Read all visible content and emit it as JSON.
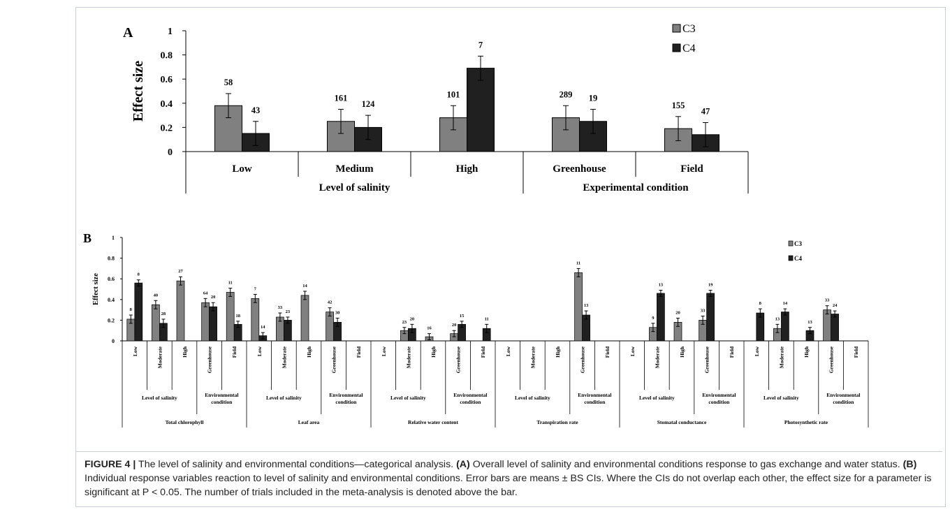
{
  "chart_data": [
    {
      "panel": "A",
      "type": "bar",
      "ylabel": "Effect size",
      "ylim": [
        0,
        1
      ],
      "yticks": [
        "0",
        "0.2",
        "0.4",
        "0.6",
        "0.8",
        "1"
      ],
      "categories": [
        "Low",
        "Medium",
        "High",
        "Greenhouse",
        "Field"
      ],
      "groups": [
        {
          "label": "Level of salinity",
          "span": [
            0,
            2
          ]
        },
        {
          "label": "Experimental condition",
          "span": [
            3,
            4
          ]
        }
      ],
      "series": [
        {
          "name": "C3",
          "color": "#808080",
          "values": [
            0.38,
            0.25,
            0.28,
            0.28,
            0.19
          ],
          "errors": [
            0.1,
            0.1,
            0.1,
            0.1,
            0.1
          ],
          "counts": [
            "58",
            "161",
            "101",
            "289",
            "155"
          ]
        },
        {
          "name": "C4",
          "color": "#202020",
          "values": [
            0.15,
            0.2,
            0.69,
            0.25,
            0.14
          ],
          "errors": [
            0.1,
            0.1,
            0.1,
            0.1,
            0.1
          ],
          "counts": [
            "43",
            "124",
            "7",
            "19",
            "47"
          ]
        }
      ],
      "legend_position": "top-right"
    },
    {
      "panel": "B",
      "type": "bar",
      "ylabel": "Effect size",
      "ylim": [
        0,
        1
      ],
      "yticks": [
        "0",
        "0.2",
        "0.4",
        "0.6",
        "0.8",
        "1"
      ],
      "category_labels": [
        "Low",
        "Moderate",
        "High",
        "Greenhouse",
        "Field"
      ],
      "subgroups": [
        {
          "label": "Level of salinity",
          "span": [
            0,
            2
          ]
        },
        {
          "label": [
            "Environmental",
            "condition"
          ],
          "span": [
            3,
            4
          ]
        }
      ],
      "variables": [
        {
          "name": "Total chlorophyll",
          "c3": [
            0.21,
            0.35,
            0.58,
            0.37,
            0.47
          ],
          "c3_err": [
            0.04,
            0.04,
            0.04,
            0.04,
            0.04
          ],
          "c3_n": [
            "8",
            "40",
            "27",
            "64",
            "11"
          ],
          "c4": [
            0.56,
            0.17,
            null,
            0.33,
            0.16
          ],
          "c4_err": [
            0.03,
            0.04,
            null,
            0.04,
            0.03
          ],
          "c4_n": [
            "8",
            "28",
            "",
            "20",
            "18"
          ]
        },
        {
          "name": "Leaf area",
          "c3": [
            0.41,
            0.23,
            0.44,
            0.28,
            null
          ],
          "c3_err": [
            0.04,
            0.04,
            0.04,
            0.04,
            null
          ],
          "c3_n": [
            "7",
            "33",
            "14",
            "42",
            ""
          ],
          "c4": [
            0.05,
            0.2,
            null,
            0.18,
            null
          ],
          "c4_err": [
            0.03,
            0.03,
            null,
            0.04,
            null
          ],
          "c4_n": [
            "14",
            "23",
            "",
            "30",
            ""
          ]
        },
        {
          "name": "Relative water content",
          "c3": [
            null,
            0.1,
            0.04,
            0.07,
            null
          ],
          "c3_err": [
            null,
            0.03,
            0.03,
            0.03,
            null
          ],
          "c3_n": [
            "",
            "23",
            "16",
            "20",
            ""
          ],
          "c4": [
            null,
            0.12,
            null,
            0.16,
            0.12
          ],
          "c4_err": [
            null,
            0.04,
            null,
            0.03,
            0.04
          ],
          "c4_n": [
            "",
            "20",
            "",
            "15",
            "11"
          ]
        },
        {
          "name": "Transpiration rate",
          "c3": [
            null,
            null,
            null,
            0.66,
            null
          ],
          "c3_err": [
            null,
            null,
            null,
            0.04,
            null
          ],
          "c3_n": [
            "",
            "",
            "",
            "11",
            ""
          ],
          "c4": [
            null,
            null,
            null,
            0.25,
            null
          ],
          "c4_err": [
            null,
            null,
            null,
            0.04,
            null
          ],
          "c4_n": [
            "",
            "",
            "",
            "13",
            ""
          ]
        },
        {
          "name": "Stomatal conductance",
          "c3": [
            null,
            0.13,
            0.18,
            0.2,
            null
          ],
          "c3_err": [
            null,
            0.04,
            0.04,
            0.04,
            null
          ],
          "c3_n": [
            "",
            "9",
            "20",
            "33",
            ""
          ],
          "c4": [
            null,
            0.46,
            null,
            0.46,
            null
          ],
          "c4_err": [
            null,
            0.03,
            null,
            0.03,
            null
          ],
          "c4_n": [
            "",
            "13",
            "",
            "19",
            ""
          ]
        },
        {
          "name": "Photosynthetic rate",
          "c3": [
            null,
            0.12,
            null,
            0.3,
            null
          ],
          "c3_err": [
            null,
            0.04,
            null,
            0.04,
            null
          ],
          "c3_n": [
            "",
            "13",
            "",
            "33",
            ""
          ],
          "c4": [
            0.27,
            0.28,
            0.1,
            0.26,
            null
          ],
          "c4_err": [
            0.04,
            0.03,
            0.03,
            0.03,
            null
          ],
          "c4_n": [
            "8",
            "14",
            "13",
            "24",
            ""
          ]
        }
      ],
      "series_names": [
        "C3",
        "C4"
      ],
      "series_colors": [
        "#808080",
        "#202020"
      ],
      "legend_position": "top-right"
    }
  ],
  "caption": {
    "label": "FIGURE 4 |",
    "text_1": " The level of salinity and environmental conditions—categorical analysis. ",
    "a_label": "(A)",
    "text_2": " Overall level of salinity and environmental conditions response to gas exchange and water status. ",
    "b_label": "(B)",
    "text_3": " Individual response variables reaction to level of salinity and environmental conditions. Error bars are means ± BS CIs. Where the CIs do not overlap each other, the effect size for a parameter is significant at P < 0.05. The number of trials included in the meta-analysis is denoted above the bar."
  }
}
